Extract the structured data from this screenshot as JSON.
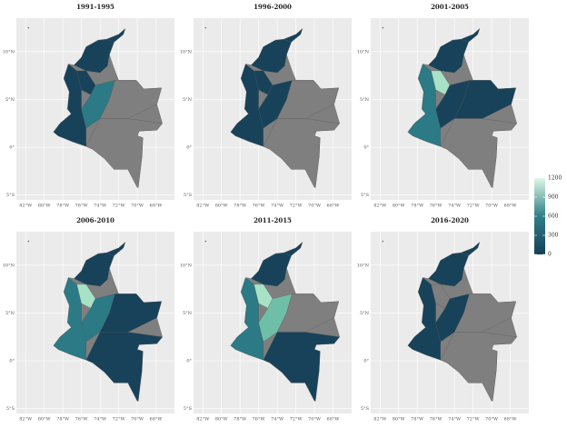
{
  "panels": [
    {
      "title": "1991-1995"
    },
    {
      "title": "1996-2000"
    },
    {
      "title": "2001-2005"
    },
    {
      "title": "2006-2010"
    },
    {
      "title": "2011-2015"
    },
    {
      "title": "2016-2020"
    }
  ],
  "map_axes": {
    "xlim": [
      -83,
      -66
    ],
    "ylim": [
      -5.5,
      13.5
    ],
    "xticks": [
      {
        "value": -82,
        "label": "82°W"
      },
      {
        "value": -80,
        "label": "80°W"
      },
      {
        "value": -78,
        "label": "78°W"
      },
      {
        "value": -76,
        "label": "76°W"
      },
      {
        "value": -74,
        "label": "74°W"
      },
      {
        "value": -72,
        "label": "72°W"
      },
      {
        "value": -70,
        "label": "70°W"
      },
      {
        "value": -68,
        "label": "68°W"
      }
    ],
    "yticks": [
      {
        "value": 10,
        "label": "10°N"
      },
      {
        "value": 5,
        "label": "5°N"
      },
      {
        "value": 0,
        "label": "0°"
      },
      {
        "value": -5,
        "label": "5°S"
      }
    ]
  },
  "colorbar": {
    "lim": [
      0,
      1200
    ],
    "ticks": [
      0,
      300,
      600,
      900,
      1200
    ]
  }
}
